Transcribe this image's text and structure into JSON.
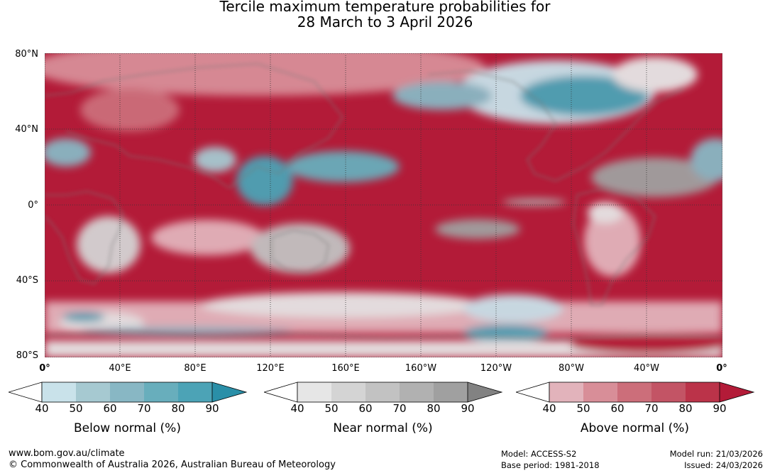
{
  "title": {
    "line1": "Tercile maximum temperature probabilities for",
    "line2": "28 March to 3 April 2026"
  },
  "map": {
    "lat_labels": [
      "80°N",
      "40°N",
      "0°",
      "40°S",
      "80°S"
    ],
    "lon_labels": [
      "0°",
      "40°E",
      "80°E",
      "120°E",
      "160°E",
      "160°W",
      "120°W",
      "80°W",
      "40°W",
      "0°"
    ],
    "land_color": "#888888",
    "dominant_color": "#b31b38"
  },
  "legends": [
    {
      "title": "Below normal (%)",
      "ticks": [
        "40",
        "50",
        "60",
        "70",
        "80",
        "90"
      ],
      "colors": [
        "#c9e2ea",
        "#a6c9d1",
        "#88b7c4",
        "#68aebc",
        "#4ca3b6",
        "#2a8fa8"
      ]
    },
    {
      "title": "Near normal (%)",
      "ticks": [
        "40",
        "50",
        "60",
        "70",
        "80",
        "90"
      ],
      "colors": [
        "#e6e6e6",
        "#d4d4d4",
        "#c2c2c2",
        "#b1b1b1",
        "#a0a0a0",
        "#828282"
      ]
    },
    {
      "title": "Above normal (%)",
      "ticks": [
        "40",
        "50",
        "60",
        "70",
        "80",
        "90"
      ],
      "colors": [
        "#e2b3bb",
        "#d88e98",
        "#cc6e7a",
        "#c35465",
        "#bb3349",
        "#b31b38"
      ]
    }
  ],
  "footer": {
    "url": "www.bom.gov.au/climate",
    "copyright": "© Commonwealth of Australia 2026, Australian Bureau of Meteorology",
    "model": "Model: ACCESS-S2",
    "base_period": "Base period: 1981-2018",
    "model_run": "Model run: 21/03/2026",
    "issued": "Issued: 24/03/2026"
  }
}
